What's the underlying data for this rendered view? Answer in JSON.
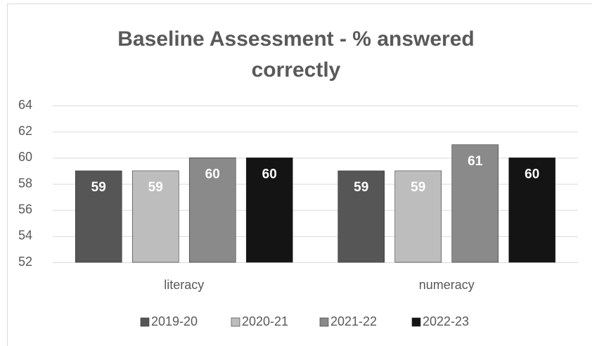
{
  "chart_data": {
    "type": "bar",
    "title": "Baseline Assessment - % answered correctly",
    "categories": [
      "literacy",
      "numeracy"
    ],
    "series": [
      {
        "name": "2019-20",
        "color": "#565656",
        "values": [
          59,
          59
        ]
      },
      {
        "name": "2020-21",
        "color": "#bdbdbd",
        "values": [
          59,
          59
        ]
      },
      {
        "name": "2021-22",
        "color": "#8a8a8a",
        "values": [
          60,
          61
        ]
      },
      {
        "name": "2022-23",
        "color": "#141414",
        "values": [
          60,
          60
        ]
      }
    ],
    "ylim": [
      52,
      64
    ],
    "yticks": [
      52,
      54,
      56,
      58,
      60,
      62,
      64
    ],
    "grid": true,
    "legend": "bottom"
  }
}
